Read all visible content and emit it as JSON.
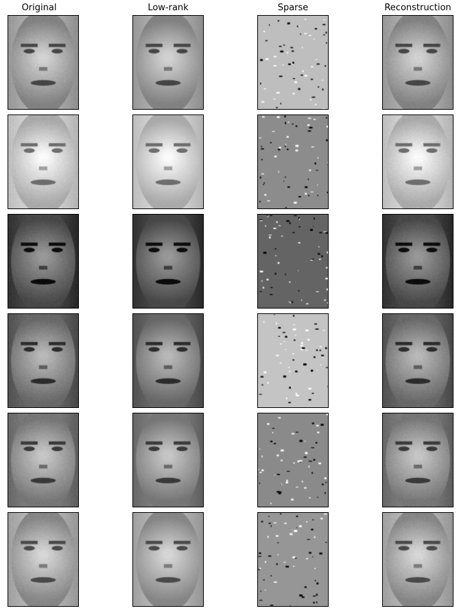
{
  "figure": {
    "columns": [
      {
        "key": "original",
        "title": "Original",
        "kind": "face"
      },
      {
        "key": "low_rank",
        "title": "Low-rank",
        "kind": "face"
      },
      {
        "key": "sparse",
        "title": "Sparse",
        "kind": "sparse"
      },
      {
        "key": "reconstruction",
        "title": "Reconstruction",
        "kind": "face"
      }
    ],
    "rows": [
      {
        "subject": "face-1",
        "background_gray": "#c0c0c0",
        "skin_gray": "#b4b4b4",
        "sparse_bg": "#bebebe"
      },
      {
        "subject": "face-2",
        "background_gray": "#e6e6e6",
        "skin_gray": "#dcdcdc",
        "sparse_bg": "#8c8c8c"
      },
      {
        "subject": "face-3",
        "background_gray": "#5a5a5a",
        "skin_gray": "#7a7a7a",
        "sparse_bg": "#646464"
      },
      {
        "subject": "face-4",
        "background_gray": "#7a7a7a",
        "skin_gray": "#9a9a9a",
        "sparse_bg": "#c4c4c4"
      },
      {
        "subject": "face-5",
        "background_gray": "#909090",
        "skin_gray": "#a8a8a8",
        "sparse_bg": "#8a8a8a"
      },
      {
        "subject": "face-6",
        "background_gray": "#c8c8c8",
        "skin_gray": "#b8b8b8",
        "sparse_bg": "#969696"
      }
    ]
  }
}
